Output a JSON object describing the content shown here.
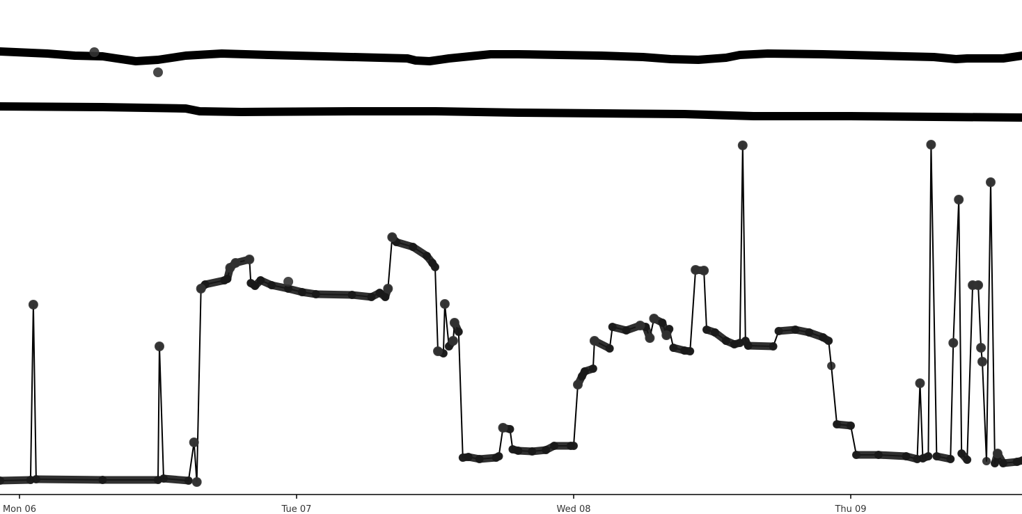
{
  "chart_data": {
    "type": "line",
    "title": "",
    "xlabel": "",
    "ylabel": "",
    "grid": false,
    "x_axis": {
      "ticks": [
        {
          "label": "Mon 06",
          "t": 0.0
        },
        {
          "label": "Tue 07",
          "t": 1.0
        },
        {
          "label": "Wed 08",
          "t": 2.0
        },
        {
          "label": "Thu 09",
          "t": 3.0
        }
      ]
    },
    "colors": {
      "line": "#000000",
      "marker": "#1a1a1a",
      "axis": "#000000",
      "text": "#333333"
    },
    "series": [
      {
        "style": "thick-line",
        "points": [
          [
            -0.07,
            74
          ],
          [
            0.1,
            77
          ],
          [
            0.2,
            80
          ],
          [
            0.3,
            81
          ],
          [
            0.35,
            84
          ],
          [
            0.42,
            88
          ],
          [
            0.5,
            86
          ],
          [
            0.6,
            80
          ],
          [
            0.73,
            77
          ],
          [
            0.9,
            79
          ],
          [
            1.1,
            81
          ],
          [
            1.3,
            83
          ],
          [
            1.4,
            84
          ],
          [
            1.43,
            87
          ],
          [
            1.48,
            88
          ],
          [
            1.55,
            84
          ],
          [
            1.7,
            78
          ],
          [
            1.8,
            78
          ],
          [
            1.95,
            79
          ],
          [
            2.1,
            80
          ],
          [
            2.25,
            82
          ],
          [
            2.35,
            85
          ],
          [
            2.45,
            86
          ],
          [
            2.55,
            83
          ],
          [
            2.6,
            79
          ],
          [
            2.7,
            77
          ],
          [
            2.9,
            78
          ],
          [
            3.1,
            80
          ],
          [
            3.3,
            82
          ],
          [
            3.38,
            85
          ],
          [
            3.42,
            84
          ],
          [
            3.55,
            84
          ],
          [
            3.62,
            80
          ]
        ],
        "markers": [
          [
            0.27,
            75
          ],
          [
            0.5,
            104
          ]
        ]
      },
      {
        "style": "thick-line",
        "points": [
          [
            -0.07,
            153
          ],
          [
            0.3,
            154
          ],
          [
            0.6,
            156
          ],
          [
            0.65,
            160
          ],
          [
            0.8,
            161
          ],
          [
            1.2,
            160
          ],
          [
            1.5,
            160
          ],
          [
            1.8,
            162
          ],
          [
            2.1,
            163
          ],
          [
            2.4,
            164
          ],
          [
            2.65,
            167
          ],
          [
            3.0,
            167
          ],
          [
            3.3,
            168
          ],
          [
            3.62,
            169
          ]
        ],
        "markers": []
      },
      {
        "style": "line-with-markers",
        "points": [
          [
            -0.07,
            691
          ],
          [
            0.04,
            690
          ],
          [
            0.05,
            438
          ],
          [
            0.06,
            689
          ],
          [
            0.3,
            690
          ],
          [
            0.5,
            690
          ],
          [
            0.505,
            498
          ],
          [
            0.52,
            688
          ],
          [
            0.61,
            691
          ],
          [
            0.63,
            636
          ],
          [
            0.64,
            693
          ],
          [
            0.655,
            415
          ],
          [
            0.67,
            409
          ],
          [
            0.74,
            403
          ],
          [
            0.75,
            401
          ],
          [
            0.76,
            385
          ],
          [
            0.78,
            378
          ],
          [
            0.83,
            373
          ],
          [
            0.835,
            407
          ],
          [
            0.85,
            411
          ],
          [
            0.87,
            403
          ],
          [
            0.91,
            410
          ],
          [
            0.97,
            415
          ],
          [
            1.02,
            420
          ],
          [
            1.07,
            423
          ],
          [
            1.2,
            424
          ],
          [
            1.27,
            427
          ],
          [
            1.3,
            421
          ],
          [
            1.32,
            427
          ],
          [
            1.33,
            415
          ],
          [
            1.345,
            341
          ],
          [
            1.36,
            348
          ],
          [
            1.42,
            355
          ],
          [
            1.47,
            368
          ],
          [
            1.49,
            378
          ],
          [
            1.5,
            384
          ],
          [
            1.51,
            505
          ],
          [
            1.53,
            508
          ],
          [
            1.535,
            437
          ],
          [
            1.55,
            498
          ],
          [
            1.565,
            490
          ],
          [
            1.57,
            464
          ],
          [
            1.585,
            477
          ],
          [
            1.6,
            658
          ],
          [
            1.62,
            657
          ],
          [
            1.66,
            660
          ],
          [
            1.72,
            658
          ],
          [
            1.73,
            656
          ],
          [
            1.745,
            615
          ],
          [
            1.77,
            617
          ],
          [
            1.78,
            646
          ],
          [
            1.8,
            648
          ],
          [
            1.85,
            649
          ],
          [
            1.9,
            647
          ],
          [
            1.93,
            641
          ],
          [
            1.99,
            641
          ],
          [
            2.0,
            641
          ],
          [
            2.015,
            553
          ],
          [
            2.03,
            541
          ],
          [
            2.04,
            534
          ],
          [
            2.07,
            530
          ],
          [
            2.075,
            490
          ],
          [
            2.13,
            501
          ],
          [
            2.14,
            470
          ],
          [
            2.19,
            475
          ],
          [
            2.24,
            468
          ],
          [
            2.26,
            470
          ],
          [
            2.275,
            486
          ],
          [
            2.29,
            458
          ],
          [
            2.32,
            464
          ],
          [
            2.335,
            482
          ],
          [
            2.345,
            473
          ],
          [
            2.36,
            500
          ],
          [
            2.4,
            504
          ],
          [
            2.42,
            505
          ],
          [
            2.44,
            388
          ],
          [
            2.47,
            389
          ],
          [
            2.48,
            474
          ],
          [
            2.51,
            478
          ],
          [
            2.55,
            490
          ],
          [
            2.58,
            495
          ],
          [
            2.6,
            493
          ],
          [
            2.61,
            209
          ],
          [
            2.62,
            490
          ],
          [
            2.63,
            497
          ],
          [
            2.72,
            498
          ],
          [
            2.74,
            476
          ],
          [
            2.8,
            474
          ],
          [
            2.85,
            478
          ],
          [
            2.9,
            485
          ],
          [
            2.92,
            490
          ],
          [
            2.93,
            526
          ],
          [
            2.95,
            610
          ],
          [
            3.0,
            612
          ],
          [
            3.02,
            654
          ],
          [
            3.1,
            654
          ],
          [
            3.2,
            656
          ],
          [
            3.24,
            660
          ],
          [
            3.25,
            551
          ],
          [
            3.26,
            659
          ],
          [
            3.28,
            656
          ],
          [
            3.29,
            208
          ],
          [
            3.31,
            656
          ],
          [
            3.36,
            660
          ],
          [
            3.37,
            493
          ],
          [
            3.39,
            287
          ],
          [
            3.4,
            652
          ],
          [
            3.42,
            661
          ],
          [
            3.44,
            410
          ],
          [
            3.46,
            410
          ],
          [
            3.47,
            500
          ],
          [
            3.475,
            520
          ],
          [
            3.49,
            663
          ],
          [
            3.505,
            262
          ],
          [
            3.52,
            666
          ],
          [
            3.53,
            652
          ],
          [
            3.55,
            666
          ],
          [
            3.6,
            664
          ],
          [
            3.62,
            662
          ]
        ],
        "markers": [
          [
            0.05,
            438
          ],
          [
            0.505,
            498
          ],
          [
            0.63,
            636
          ],
          [
            0.64,
            693
          ],
          [
            0.655,
            415
          ],
          [
            0.76,
            385
          ],
          [
            0.78,
            378
          ],
          [
            0.83,
            373
          ],
          [
            0.97,
            405
          ],
          [
            1.33,
            415
          ],
          [
            1.345,
            341
          ],
          [
            1.51,
            505
          ],
          [
            1.535,
            437
          ],
          [
            1.565,
            490
          ],
          [
            1.57,
            464
          ],
          [
            1.745,
            615
          ],
          [
            2.015,
            553
          ],
          [
            2.075,
            490
          ],
          [
            2.24,
            468
          ],
          [
            2.275,
            486
          ],
          [
            2.29,
            458
          ],
          [
            2.335,
            482
          ],
          [
            2.44,
            388
          ],
          [
            2.47,
            389
          ],
          [
            2.61,
            209
          ],
          [
            3.25,
            551
          ],
          [
            3.29,
            208
          ],
          [
            3.37,
            493
          ],
          [
            3.39,
            287
          ],
          [
            3.44,
            410
          ],
          [
            3.46,
            410
          ],
          [
            3.47,
            500
          ],
          [
            3.475,
            520
          ],
          [
            3.505,
            262
          ],
          [
            3.53,
            652
          ]
        ]
      }
    ]
  }
}
